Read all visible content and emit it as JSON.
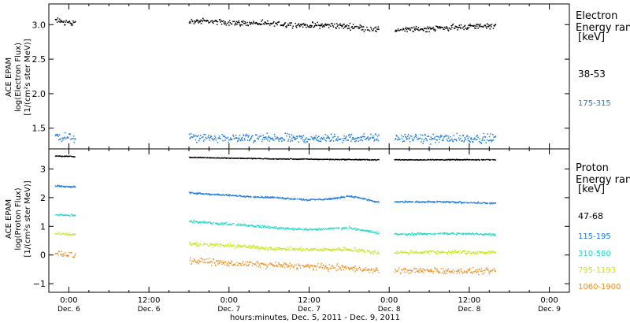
{
  "figure": {
    "xlabel": "hours:minutes, Dec.  5, 2011 - Dec.  9, 2011",
    "time_ticks": [
      {
        "hours": 24,
        "time": "0:00",
        "date": "Dec. 6"
      },
      {
        "hours": 36,
        "time": "12:00",
        "date": "Dec. 6"
      },
      {
        "hours": 48,
        "time": "0:00",
        "date": "Dec. 7"
      },
      {
        "hours": 60,
        "time": "12:00",
        "date": "Dec. 7"
      },
      {
        "hours": 72,
        "time": "0:00",
        "date": "Dec. 8"
      },
      {
        "hours": 84,
        "time": "12:00",
        "date": "Dec. 8"
      },
      {
        "hours": 96,
        "time": "0:00",
        "date": "Dec. 9"
      }
    ],
    "gaps": [
      [
        25,
        42
      ],
      [
        70.5,
        72.8
      ]
    ]
  },
  "chart_data": [
    {
      "type": "scatter",
      "instrument": "ACE EPAM",
      "ylabel_line1": "log(Electron Flux)",
      "ylabel_line2": "[1/(cm²s ster MeV)]",
      "legend_title_line1": "Electron",
      "legend_title_line2": "Energy ran",
      "legend_unit": "[keV]",
      "xlim_hours": [
        21,
        99
      ],
      "ylim": [
        1.2,
        3.3
      ],
      "yticks": [
        1.5,
        2.0,
        2.5,
        3.0
      ],
      "ytick_labels": [
        "1.5",
        "2.0",
        "2.5",
        "3.0"
      ],
      "series": [
        {
          "name": "38-53",
          "color": "#000000",
          "spread": 0.06,
          "x_hours": [
            22,
            24.5,
            43,
            50,
            55,
            60,
            63,
            66.5,
            70,
            73,
            80,
            84,
            88
          ],
          "y": [
            3.06,
            3.02,
            3.05,
            3.02,
            3.01,
            2.99,
            2.99,
            2.97,
            2.93,
            2.92,
            2.95,
            2.97,
            2.99
          ]
        },
        {
          "name": "175-315",
          "color": "#1a7be0",
          "spread": 0.09,
          "x_hours": [
            22,
            24.5,
            43,
            50,
            60,
            70,
            73,
            80,
            88
          ],
          "y": [
            1.38,
            1.36,
            1.36,
            1.35,
            1.35,
            1.36,
            1.35,
            1.35,
            1.35
          ]
        }
      ]
    },
    {
      "type": "scatter",
      "instrument": "ACE EPAM",
      "ylabel_line1": "log(Proton Flux)",
      "ylabel_line2": "[1/(cm²s ster MeV)]",
      "legend_title_line1": "Proton",
      "legend_title_line2": "Energy ran",
      "legend_unit": "[keV]",
      "xlim_hours": [
        21,
        99
      ],
      "ylim": [
        -1.3,
        3.7
      ],
      "yticks": [
        -1,
        0,
        1,
        2,
        3
      ],
      "ytick_labels": [
        "−1",
        "0",
        "1",
        "2",
        "3"
      ],
      "series": [
        {
          "name": "47-68",
          "color": "#000000",
          "spread": 0.02,
          "x_hours": [
            22,
            25,
            43,
            55,
            70,
            73,
            88
          ],
          "y": [
            3.45,
            3.43,
            3.4,
            3.35,
            3.32,
            3.32,
            3.32
          ]
        },
        {
          "name": "115-195",
          "color": "#1a7be0",
          "spread": 0.04,
          "x_hours": [
            22,
            25,
            43,
            50,
            55,
            60,
            63,
            66,
            67.5,
            70,
            73,
            80,
            88
          ],
          "y": [
            2.4,
            2.38,
            2.15,
            2.05,
            2.0,
            1.92,
            1.95,
            2.05,
            2.0,
            1.85,
            1.85,
            1.85,
            1.8
          ]
        },
        {
          "name": "310-580",
          "color": "#20d9c8",
          "spread": 0.06,
          "x_hours": [
            22,
            25,
            43,
            50,
            55,
            60,
            66,
            70,
            73,
            80,
            88
          ],
          "y": [
            1.4,
            1.38,
            1.15,
            1.05,
            0.95,
            0.88,
            0.95,
            0.78,
            0.72,
            0.75,
            0.72
          ]
        },
        {
          "name": "795-1193",
          "color": "#c8e614",
          "spread": 0.09,
          "x_hours": [
            22,
            25,
            43,
            50,
            55,
            60,
            66,
            70,
            73,
            80,
            88
          ],
          "y": [
            0.75,
            0.72,
            0.38,
            0.3,
            0.22,
            0.18,
            0.2,
            0.1,
            0.08,
            0.1,
            0.08
          ]
        },
        {
          "name": "1060-1900",
          "color": "#f08c1e",
          "spread": 0.15,
          "x_hours": [
            22,
            25,
            43,
            50,
            55,
            60,
            66,
            70,
            73,
            80,
            88
          ],
          "y": [
            0.05,
            0.0,
            -0.2,
            -0.32,
            -0.35,
            -0.4,
            -0.45,
            -0.55,
            -0.55,
            -0.55,
            -0.58
          ]
        }
      ]
    }
  ]
}
